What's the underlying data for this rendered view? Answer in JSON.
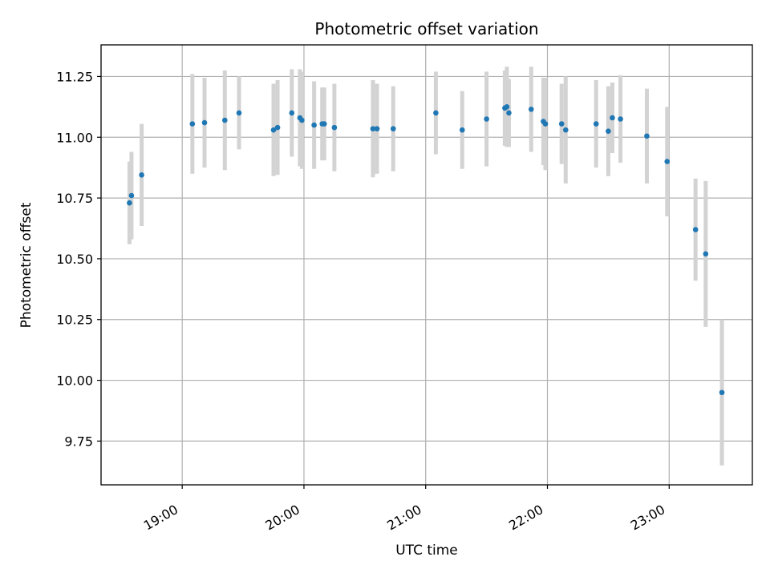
{
  "chart_data": {
    "type": "scatter",
    "title": "Photometric offset variation",
    "xlabel": "UTC time",
    "ylabel": "Photometric offset",
    "x_unit": "UTC hh:mm",
    "xlim": [
      "18:20",
      "23:41"
    ],
    "ylim": [
      9.57,
      11.38
    ],
    "grid": true,
    "xticks": [
      "19:00",
      "20:00",
      "21:00",
      "22:00",
      "23:00"
    ],
    "yticks": [
      "9.75",
      "10.00",
      "10.25",
      "10.50",
      "10.75",
      "11.00",
      "11.25"
    ],
    "colors": {
      "points": "#1f77b4",
      "errorbars": "#d3d3d3",
      "grid": "#b0b0b0",
      "axes": "#000000"
    },
    "series": [
      {
        "points": [
          {
            "t": "18:34",
            "y": 10.73,
            "err": 0.17
          },
          {
            "t": "18:35",
            "y": 10.76,
            "err": 0.18
          },
          {
            "t": "18:40",
            "y": 10.845,
            "err": 0.21
          },
          {
            "t": "19:05",
            "y": 11.055,
            "err": 0.205
          },
          {
            "t": "19:11",
            "y": 11.06,
            "err": 0.185
          },
          {
            "t": "19:21",
            "y": 11.07,
            "err": 0.205
          },
          {
            "t": "19:28",
            "y": 11.1,
            "err": 0.15
          },
          {
            "t": "19:45",
            "y": 11.03,
            "err": 0.19
          },
          {
            "t": "19:47",
            "y": 11.04,
            "err": 0.195
          },
          {
            "t": "19:54",
            "y": 11.1,
            "err": 0.18
          },
          {
            "t": "19:58",
            "y": 11.08,
            "err": 0.2
          },
          {
            "t": "19:59",
            "y": 11.07,
            "err": 0.2
          },
          {
            "t": "20:05",
            "y": 11.05,
            "err": 0.18
          },
          {
            "t": "20:09",
            "y": 11.055,
            "err": 0.15
          },
          {
            "t": "20:10",
            "y": 11.055,
            "err": 0.15
          },
          {
            "t": "20:15",
            "y": 11.04,
            "err": 0.18
          },
          {
            "t": "20:34",
            "y": 11.035,
            "err": 0.2
          },
          {
            "t": "20:36",
            "y": 11.035,
            "err": 0.185
          },
          {
            "t": "20:44",
            "y": 11.035,
            "err": 0.175
          },
          {
            "t": "21:05",
            "y": 11.1,
            "err": 0.17
          },
          {
            "t": "21:18",
            "y": 11.03,
            "err": 0.16
          },
          {
            "t": "21:30",
            "y": 11.075,
            "err": 0.195
          },
          {
            "t": "21:39",
            "y": 11.12,
            "err": 0.155
          },
          {
            "t": "21:40",
            "y": 11.125,
            "err": 0.165
          },
          {
            "t": "21:41",
            "y": 11.1,
            "err": 0.14
          },
          {
            "t": "21:52",
            "y": 11.115,
            "err": 0.175
          },
          {
            "t": "21:58",
            "y": 11.065,
            "err": 0.18
          },
          {
            "t": "21:59",
            "y": 11.055,
            "err": 0.19
          },
          {
            "t": "22:07",
            "y": 11.055,
            "err": 0.165
          },
          {
            "t": "22:09",
            "y": 11.03,
            "err": 0.22
          },
          {
            "t": "22:24",
            "y": 11.055,
            "err": 0.18
          },
          {
            "t": "22:30",
            "y": 11.025,
            "err": 0.185
          },
          {
            "t": "22:32",
            "y": 11.08,
            "err": 0.145
          },
          {
            "t": "22:36",
            "y": 11.075,
            "err": 0.18
          },
          {
            "t": "22:49",
            "y": 11.005,
            "err": 0.195
          },
          {
            "t": "22:59",
            "y": 10.9,
            "err": 0.225
          },
          {
            "t": "23:13",
            "y": 10.62,
            "err": 0.21
          },
          {
            "t": "23:18",
            "y": 10.52,
            "err": 0.3
          },
          {
            "t": "23:26",
            "y": 9.95,
            "err": 0.3
          }
        ]
      }
    ]
  }
}
